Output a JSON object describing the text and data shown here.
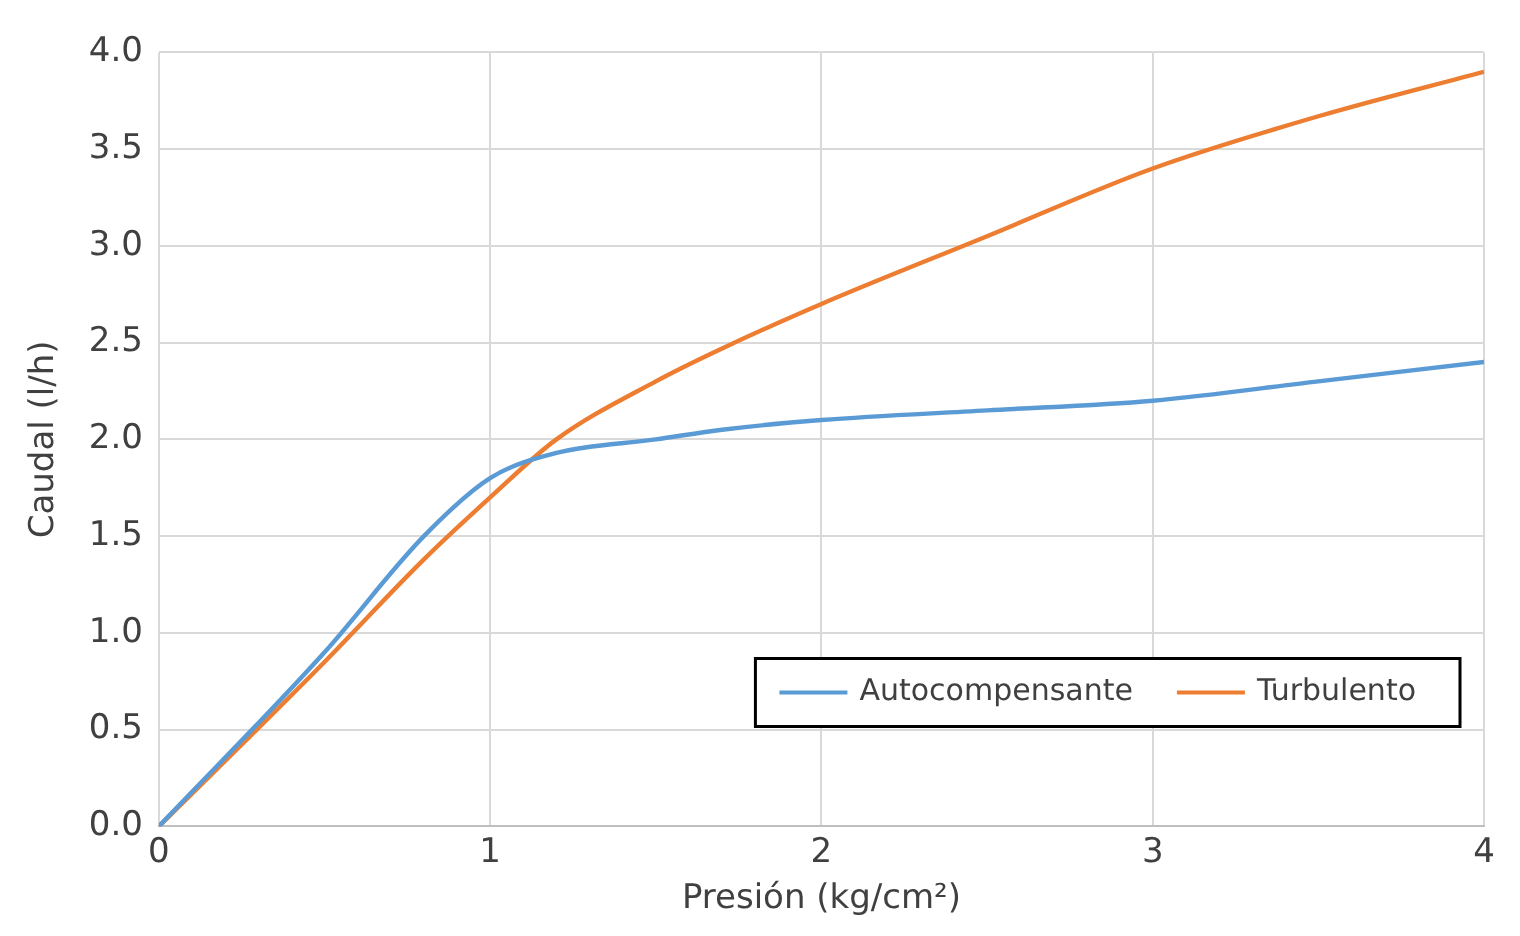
{
  "chart_data": {
    "type": "line",
    "xlabel": "Presión (kg/cm²)",
    "ylabel": "Caudal (l/h)",
    "xlim": [
      0,
      4
    ],
    "xticks": [
      0,
      1,
      2,
      3,
      4
    ],
    "ylim": [
      0,
      4
    ],
    "yticks": [
      {
        "value": 0,
        "label": "0.0"
      },
      {
        "value": 0.5,
        "label": "0.5"
      },
      {
        "value": 1,
        "label": "1.0"
      },
      {
        "value": 1.5,
        "label": "1.5"
      },
      {
        "value": 2,
        "label": "2.0"
      },
      {
        "value": 2.5,
        "label": "2.5"
      },
      {
        "value": 3,
        "label": "3.0"
      },
      {
        "value": 3.5,
        "label": "3.5"
      },
      {
        "value": 4,
        "label": "4.0"
      }
    ],
    "grid": true,
    "legend": "bottom right",
    "marker": "none",
    "line_style": "solid",
    "series": [
      {
        "name": "Autocompensante",
        "color": "#5b9bd5",
        "x": [
          0,
          0.5,
          0.8,
          1,
          1.2,
          1.5,
          1.7,
          2,
          2.5,
          3,
          3.5,
          4
        ],
        "values": [
          0,
          0.9,
          1.5,
          1.8,
          1.93,
          2.0,
          2.05,
          2.1,
          2.15,
          2.2,
          2.3,
          2.4
        ]
      },
      {
        "name": "Turbulento",
        "color": "#ed7d31",
        "x": [
          0,
          0.5,
          0.8,
          1,
          1.2,
          1.5,
          1.7,
          2,
          2.5,
          3,
          3.5,
          4
        ],
        "values": [
          0,
          0.85,
          1.38,
          1.7,
          2.0,
          2.3,
          2.47,
          2.7,
          3.05,
          3.4,
          3.67,
          3.9
        ]
      }
    ]
  }
}
